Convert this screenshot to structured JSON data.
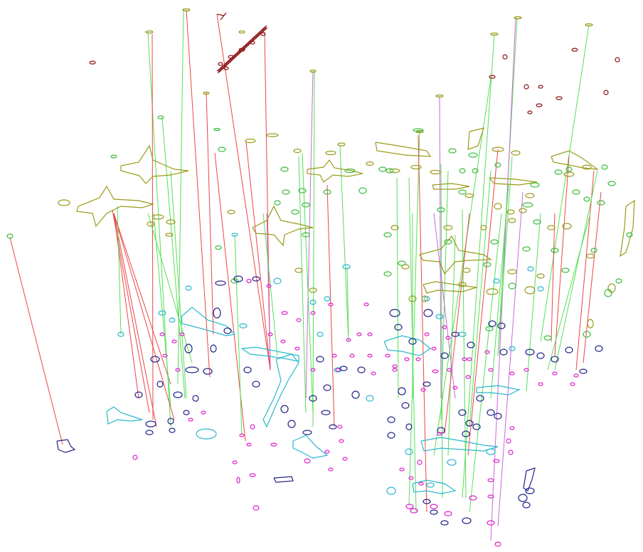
{
  "figure": {
    "background": "#ffffff",
    "colors": {
      "level_top": "#9a9a1a",
      "level_middle": "#3bbd3b",
      "level_lower": "#2ab8cc",
      "level_bottom_blue": "#22228a",
      "level_bottom_magenta": "#dd22cc",
      "scribble": "#8b1010",
      "link_green": "#55e055",
      "link_red": "#ee4444",
      "link_violet": "#cc66dd"
    },
    "description_free": true
  }
}
